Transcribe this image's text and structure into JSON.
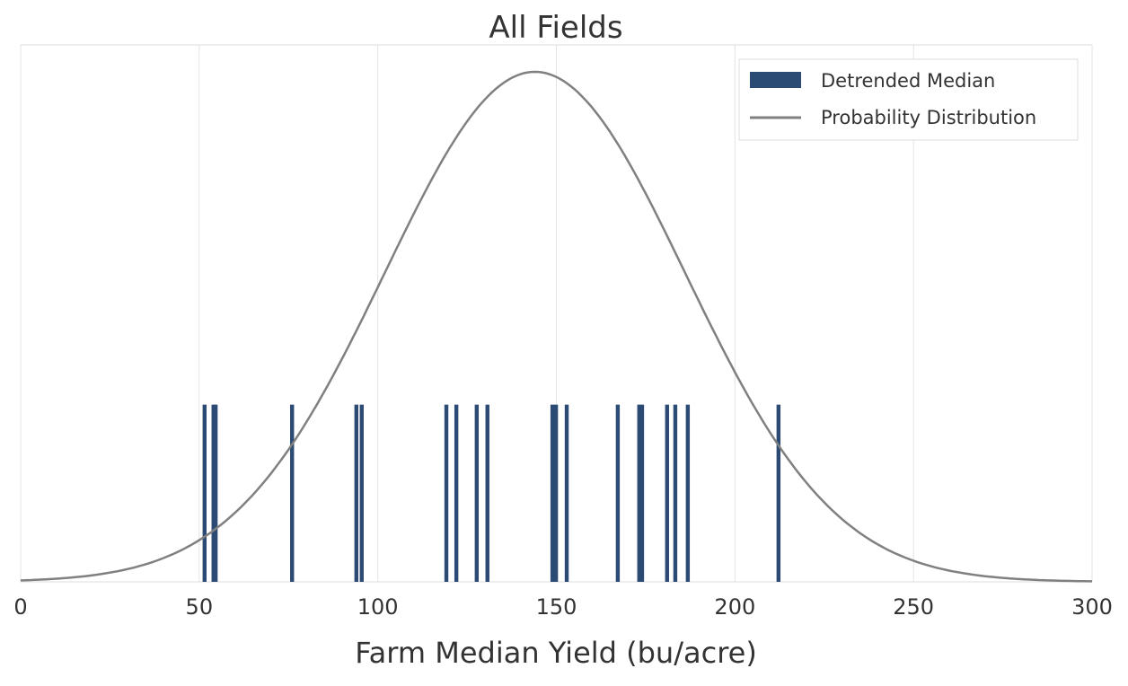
{
  "chart_data": {
    "type": "bar",
    "title": "All Fields",
    "xlabel": "Farm Median Yield (bu/acre)",
    "ylabel": "",
    "xlim": [
      0,
      300
    ],
    "ylim": [
      0,
      0.01
    ],
    "xticks": [
      "0",
      "50",
      "100",
      "150",
      "200",
      "250",
      "300"
    ],
    "grid": true,
    "legend_position": "top-right",
    "series": [
      {
        "name": "Detrended Median",
        "type": "bar",
        "color": "#2b4a74",
        "bar_height": 0.0033,
        "x": [
          51.5,
          54.0,
          54.6,
          76.0,
          94.0,
          95.5,
          119.2,
          122.0,
          127.7,
          130.7,
          148.9,
          149.9,
          152.9,
          167.2,
          173.2,
          174.0,
          181.0,
          183.3,
          186.8,
          212.2
        ]
      },
      {
        "name": "Probability Distribution",
        "type": "line",
        "color": "#808080",
        "distribution": "normal",
        "mean": 144,
        "std": 42
      }
    ]
  }
}
